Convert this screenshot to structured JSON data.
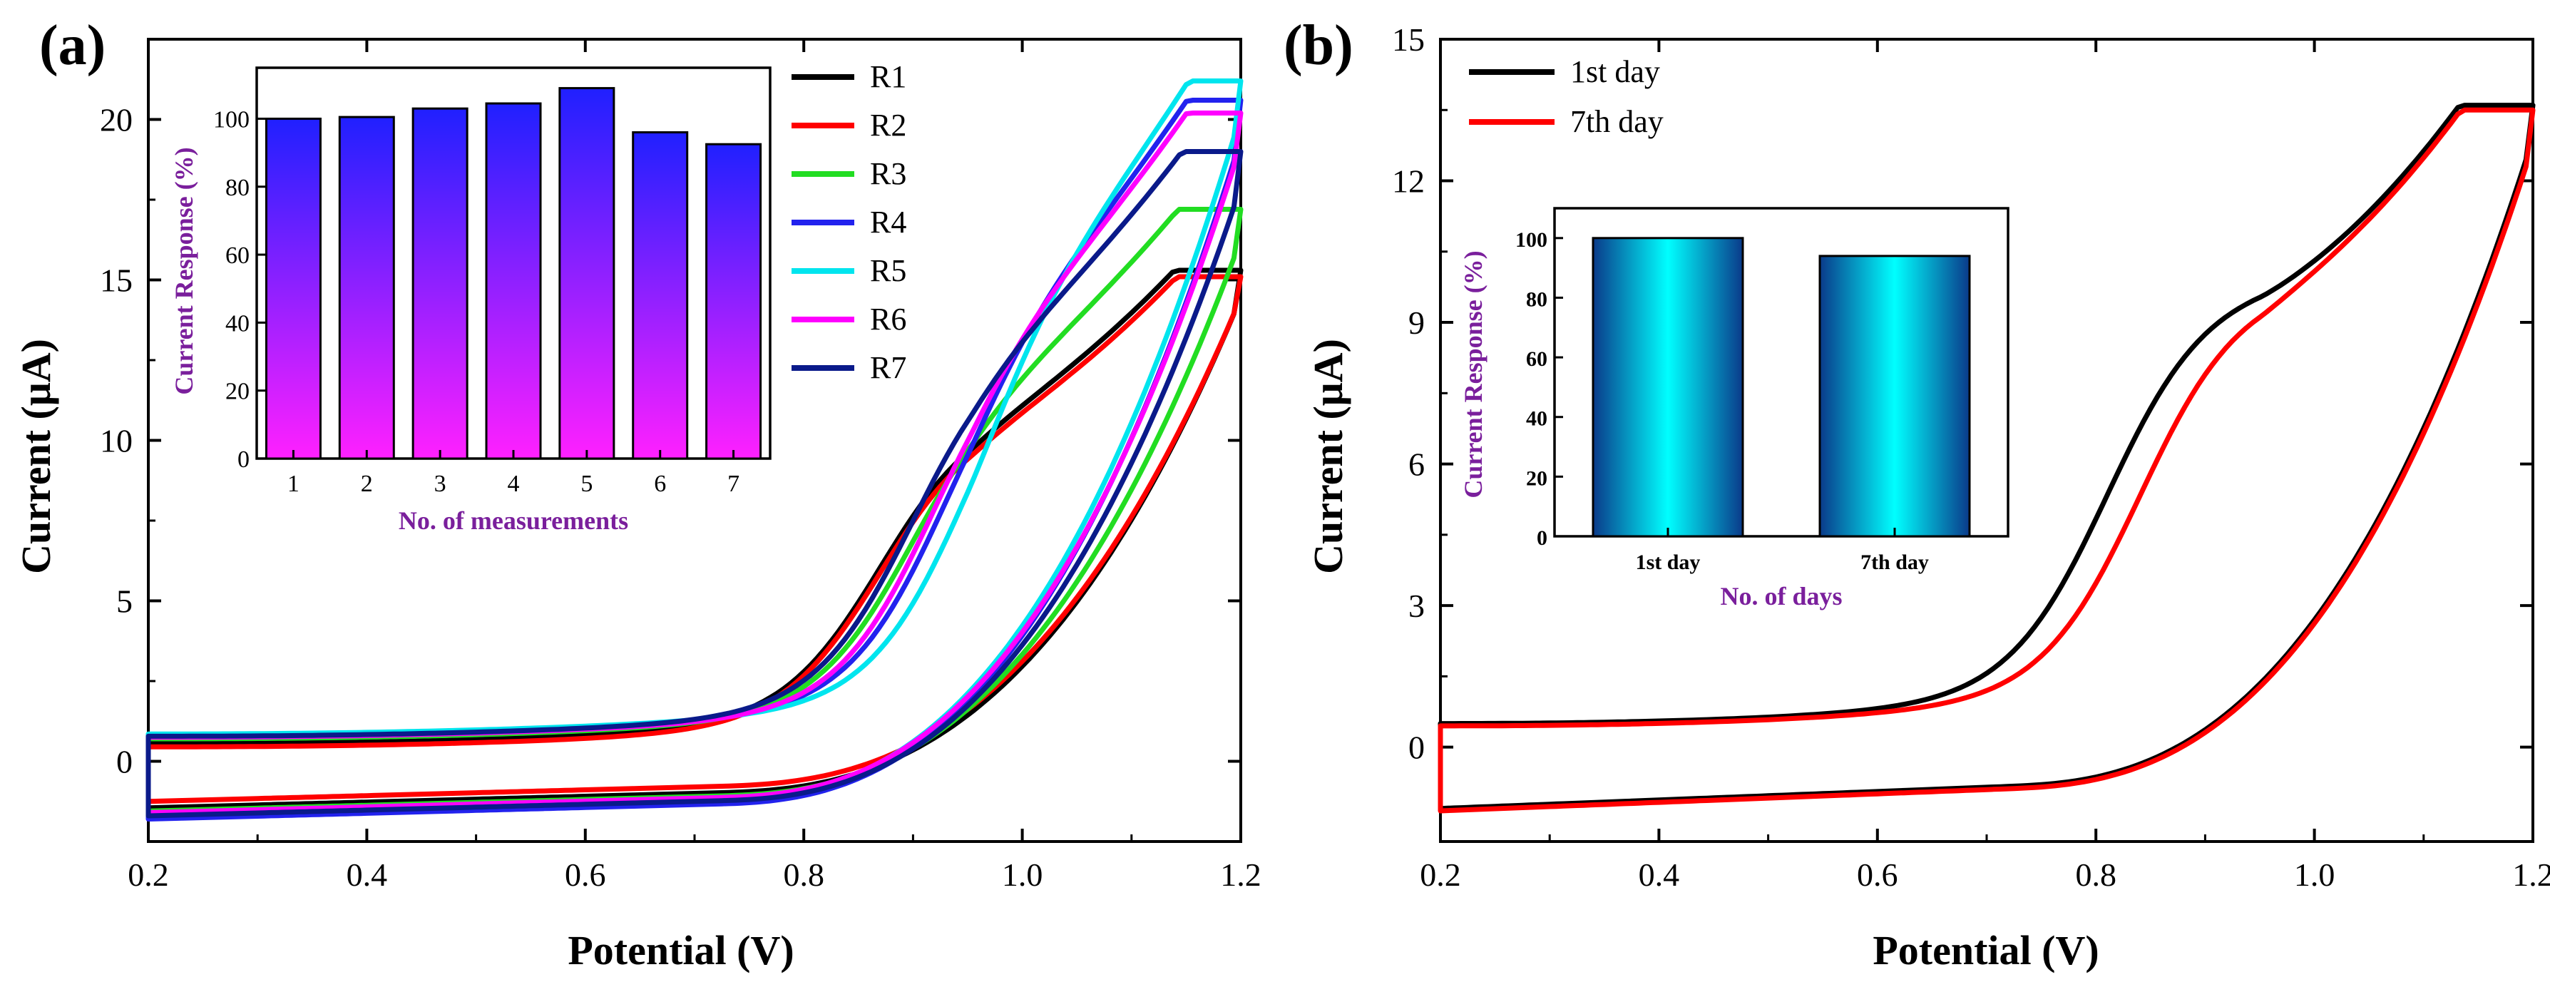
{
  "chart_data": [
    {
      "panel": "(a)",
      "type": "line",
      "xlabel": "Potential (V)",
      "ylabel": "Current (μA)",
      "xlim": [
        0.2,
        1.2
      ],
      "ylim": [
        -2.5,
        22.5
      ],
      "xticks": [
        "0.2",
        "0.4",
        "0.6",
        "0.8",
        "1.0",
        "1.2"
      ],
      "yticks": [
        "0",
        "5",
        "10",
        "15",
        "20"
      ],
      "legend_position": "top-right",
      "series": [
        {
          "name": "R1",
          "color": "#000000",
          "peak": 15.3,
          "hump": 0.94,
          "start_upper": 0.55,
          "start_lower": -1.45
        },
        {
          "name": "R2",
          "color": "#ff0000",
          "peak": 15.1,
          "hump": 0.94,
          "start_upper": 0.45,
          "start_lower": -1.25
        },
        {
          "name": "R3",
          "color": "#22dd22",
          "peak": 17.2,
          "hump": 0.97,
          "start_upper": 0.7,
          "start_lower": -1.55
        },
        {
          "name": "R4",
          "color": "#2222ee",
          "peak": 20.6,
          "hump": 1.0,
          "start_upper": 0.8,
          "start_lower": -1.8
        },
        {
          "name": "R5",
          "color": "#00e5ee",
          "peak": 21.2,
          "hump": 1.02,
          "start_upper": 0.85,
          "start_lower": -1.65
        },
        {
          "name": "R6",
          "color": "#ff00ff",
          "peak": 20.2,
          "hump": 0.99,
          "start_upper": 0.75,
          "start_lower": -1.6
        },
        {
          "name": "R7",
          "color": "#0a1a8a",
          "peak": 19.0,
          "hump": 0.97,
          "start_upper": 0.78,
          "start_lower": -1.7
        }
      ],
      "inset": {
        "type": "bar",
        "xlabel": "No. of  measurements",
        "ylabel": "Current Response (%)",
        "ylim": [
          0,
          115
        ],
        "yticks": [
          "0",
          "20",
          "40",
          "60",
          "80",
          "100"
        ],
        "categories": [
          "1",
          "2",
          "3",
          "4",
          "5",
          "6",
          "7"
        ],
        "values": [
          100,
          100.5,
          103,
          104.5,
          109,
          96,
          92.5
        ],
        "gradient": [
          "#2020ff",
          "#ff20ff"
        ]
      }
    },
    {
      "panel": "(b)",
      "type": "line",
      "xlabel": "Potential (V)",
      "ylabel": "Current (μA)",
      "xlim": [
        0.2,
        1.2
      ],
      "ylim": [
        -2,
        15
      ],
      "xticks": [
        "0.2",
        "0.4",
        "0.6",
        "0.8",
        "1.0",
        "1.2"
      ],
      "yticks": [
        "0",
        "3",
        "6",
        "9",
        "12",
        "15"
      ],
      "legend_position": "top-left",
      "series": [
        {
          "name": "1st day",
          "color": "#000000",
          "peak": 13.6,
          "hump": 0.88,
          "start_upper": 0.5,
          "start_lower": -1.3
        },
        {
          "name": "7th day",
          "color": "#ff0000",
          "peak": 13.5,
          "hump": 0.91,
          "start_upper": 0.45,
          "start_lower": -1.35
        }
      ],
      "inset": {
        "type": "bar",
        "xlabel": "No. of days",
        "ylabel": "Current Response (%)",
        "ylim": [
          0,
          110
        ],
        "yticks": [
          "0",
          "20",
          "40",
          "60",
          "80",
          "100"
        ],
        "categories": [
          "1st day",
          "7th day"
        ],
        "values": [
          100,
          94
        ],
        "gradient": [
          "#0a3a8a",
          "#00ffff"
        ]
      }
    }
  ]
}
